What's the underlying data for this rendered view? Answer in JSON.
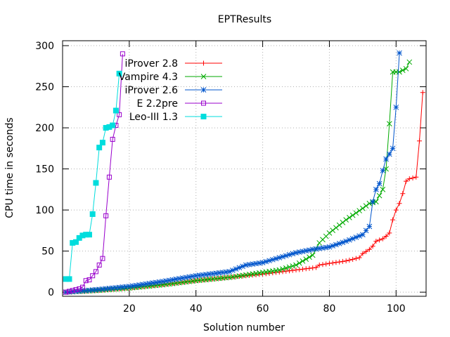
{
  "chart_data": {
    "type": "line",
    "title": "EPTResults",
    "xlabel": "Solution number",
    "ylabel": "CPU time in seconds",
    "xlim": [
      0,
      109
    ],
    "ylim": [
      -5,
      306
    ],
    "xticks": [
      20,
      40,
      60,
      80,
      100
    ],
    "yticks": [
      0,
      50,
      100,
      150,
      200,
      250,
      300
    ],
    "grid": true,
    "legend_position": "top-left",
    "series": [
      {
        "name": "iProver 2.8",
        "color": "#ff0000",
        "marker": "plus",
        "knots": [
          [
            1,
            0
          ],
          [
            10,
            2
          ],
          [
            20,
            5
          ],
          [
            30,
            9
          ],
          [
            40,
            14
          ],
          [
            50,
            18
          ],
          [
            60,
            22
          ],
          [
            70,
            27
          ],
          [
            76,
            30
          ],
          [
            77,
            33
          ],
          [
            80,
            35
          ],
          [
            85,
            38
          ],
          [
            89,
            42
          ],
          [
            90,
            47
          ],
          [
            92,
            52
          ],
          [
            93,
            56
          ],
          [
            94,
            62
          ],
          [
            96,
            65
          ],
          [
            97,
            68
          ],
          [
            98,
            72
          ],
          [
            99,
            88
          ],
          [
            100,
            100
          ],
          [
            101,
            108
          ],
          [
            102,
            120
          ],
          [
            103,
            135
          ],
          [
            104,
            138
          ],
          [
            106,
            140
          ],
          [
            107,
            184
          ],
          [
            108,
            243
          ]
        ]
      },
      {
        "name": "Vampire 4.3",
        "color": "#00aa00",
        "marker": "cross",
        "knots": [
          [
            1,
            0
          ],
          [
            10,
            2
          ],
          [
            20,
            5
          ],
          [
            30,
            9
          ],
          [
            40,
            14
          ],
          [
            50,
            18
          ],
          [
            60,
            24
          ],
          [
            65,
            27
          ],
          [
            70,
            33
          ],
          [
            75,
            45
          ],
          [
            77,
            60
          ],
          [
            80,
            72
          ],
          [
            85,
            88
          ],
          [
            90,
            102
          ],
          [
            92,
            108
          ],
          [
            94,
            110
          ],
          [
            96,
            125
          ],
          [
            97,
            150
          ],
          [
            98,
            205
          ],
          [
            99,
            268
          ],
          [
            100,
            268
          ],
          [
            101,
            268
          ],
          [
            102,
            270
          ],
          [
            103,
            272
          ],
          [
            104,
            280
          ]
        ]
      },
      {
        "name": "iProver 2.6",
        "color": "#0055cc",
        "marker": "asterisk",
        "knots": [
          [
            1,
            0
          ],
          [
            10,
            3
          ],
          [
            20,
            7
          ],
          [
            30,
            13
          ],
          [
            40,
            20
          ],
          [
            50,
            25
          ],
          [
            55,
            33
          ],
          [
            60,
            36
          ],
          [
            65,
            42
          ],
          [
            70,
            48
          ],
          [
            75,
            52
          ],
          [
            80,
            55
          ],
          [
            85,
            62
          ],
          [
            90,
            70
          ],
          [
            92,
            80
          ],
          [
            93,
            110
          ],
          [
            94,
            125
          ],
          [
            95,
            132
          ],
          [
            96,
            148
          ],
          [
            97,
            162
          ],
          [
            98,
            168
          ],
          [
            99,
            175
          ],
          [
            100,
            225
          ],
          [
            101,
            291
          ]
        ]
      },
      {
        "name": "E 2.2pre",
        "color": "#9900cc",
        "marker": "square",
        "knots": [
          [
            1,
            0
          ],
          [
            2,
            1
          ],
          [
            3,
            2
          ],
          [
            4,
            3
          ],
          [
            5,
            4
          ],
          [
            6,
            6
          ],
          [
            7,
            14
          ],
          [
            8,
            15
          ],
          [
            9,
            20
          ],
          [
            10,
            25
          ],
          [
            11,
            33
          ],
          [
            12,
            41
          ],
          [
            13,
            93
          ],
          [
            14,
            140
          ],
          [
            15,
            186
          ],
          [
            16,
            203
          ],
          [
            17,
            216
          ],
          [
            18,
            290
          ]
        ]
      },
      {
        "name": "Leo-III 1.3",
        "color": "#00dddd",
        "marker": "filled-square",
        "knots": [
          [
            1,
            16
          ],
          [
            2,
            16
          ],
          [
            3,
            60
          ],
          [
            4,
            61
          ],
          [
            5,
            66
          ],
          [
            6,
            69
          ],
          [
            7,
            70
          ],
          [
            8,
            70
          ],
          [
            9,
            95
          ],
          [
            10,
            133
          ],
          [
            11,
            176
          ],
          [
            12,
            182
          ],
          [
            13,
            200
          ],
          [
            14,
            201
          ],
          [
            15,
            203
          ],
          [
            16,
            221
          ],
          [
            17,
            266
          ]
        ]
      }
    ]
  }
}
